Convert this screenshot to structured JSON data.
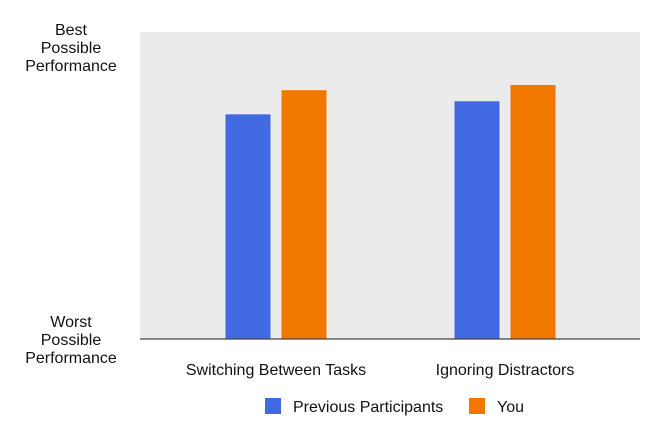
{
  "chart_data": {
    "type": "bar",
    "categories": [
      "Switching Between Tasks",
      "Ignoring Distractors"
    ],
    "series": [
      {
        "name": "Previous Participants",
        "color": "#4169e1",
        "values": [
          0.772,
          0.817
        ]
      },
      {
        "name": "You",
        "color": "#f07800",
        "values": [
          0.855,
          0.873
        ]
      }
    ],
    "y_tick_labels": {
      "top": [
        "Best",
        "Possible",
        "Performance"
      ],
      "bottom": [
        "Worst",
        "Possible",
        "Performance"
      ]
    },
    "ylim": [
      0,
      1
    ],
    "plot_background": "#ebebeb",
    "grid": false,
    "legend_position": "bottom"
  }
}
